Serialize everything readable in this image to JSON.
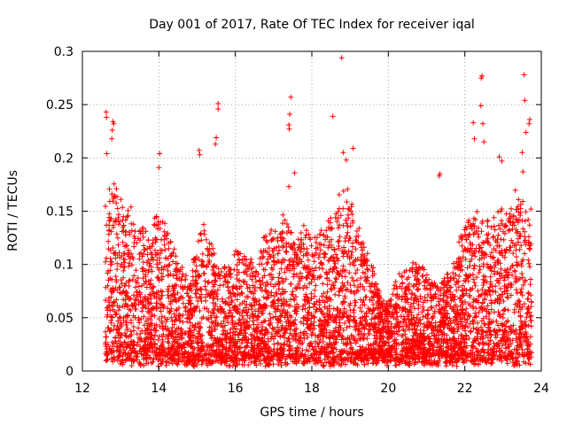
{
  "chart_data": {
    "type": "scatter",
    "title": "Day 001 of 2017, Rate Of TEC Index for receiver iqal",
    "xlabel": "GPS time / hours",
    "ylabel": "ROTI / TECUs",
    "xlim": [
      12,
      24
    ],
    "ylim": [
      0,
      0.3
    ],
    "x_ticks": [
      12,
      14,
      16,
      18,
      20,
      22,
      24
    ],
    "x_tick_labels": [
      "12",
      "14",
      "16",
      "18",
      "20",
      "22",
      "24"
    ],
    "y_ticks": [
      0,
      0.05,
      0.1,
      0.15,
      0.2,
      0.25,
      0.3
    ],
    "y_tick_labels": [
      "0",
      "0.05",
      "0.1",
      "0.15",
      "0.2",
      "0.25",
      "0.3"
    ],
    "grid": true,
    "marker": "+",
    "color": "#ff0000",
    "series_name": "ROTI",
    "x_start": 12.6,
    "x_end": 23.75,
    "envelope_hours": [
      12.6,
      12.8,
      13.0,
      13.2,
      13.5,
      13.8,
      14.0,
      14.2,
      14.5,
      14.8,
      15.0,
      15.2,
      15.5,
      15.8,
      16.0,
      16.3,
      16.6,
      16.8,
      17.0,
      17.3,
      17.6,
      17.8,
      18.0,
      18.3,
      18.6,
      18.8,
      19.0,
      19.3,
      19.6,
      19.8,
      20.0,
      20.3,
      20.6,
      20.8,
      21.0,
      21.3,
      21.6,
      21.8,
      22.0,
      22.3,
      22.6,
      22.8,
      23.0,
      23.3,
      23.6,
      23.75
    ],
    "envelope_roti": [
      0.14,
      0.16,
      0.15,
      0.14,
      0.12,
      0.11,
      0.15,
      0.12,
      0.09,
      0.08,
      0.11,
      0.13,
      0.09,
      0.09,
      0.1,
      0.1,
      0.09,
      0.12,
      0.12,
      0.13,
      0.11,
      0.12,
      0.12,
      0.12,
      0.13,
      0.17,
      0.15,
      0.11,
      0.09,
      0.06,
      0.06,
      0.08,
      0.09,
      0.09,
      0.08,
      0.07,
      0.08,
      0.1,
      0.13,
      0.14,
      0.13,
      0.13,
      0.14,
      0.15,
      0.14,
      0.12
    ],
    "notable_points": [
      {
        "x": 12.62,
        "y": 0.243
      },
      {
        "x": 12.63,
        "y": 0.238
      },
      {
        "x": 12.64,
        "y": 0.204
      },
      {
        "x": 12.8,
        "y": 0.234
      },
      {
        "x": 12.82,
        "y": 0.232
      },
      {
        "x": 12.78,
        "y": 0.226
      },
      {
        "x": 12.77,
        "y": 0.218
      },
      {
        "x": 14.02,
        "y": 0.204
      },
      {
        "x": 14.0,
        "y": 0.191
      },
      {
        "x": 15.05,
        "y": 0.207
      },
      {
        "x": 15.07,
        "y": 0.203
      },
      {
        "x": 15.55,
        "y": 0.251
      },
      {
        "x": 15.55,
        "y": 0.246
      },
      {
        "x": 15.5,
        "y": 0.219
      },
      {
        "x": 15.48,
        "y": 0.213
      },
      {
        "x": 17.45,
        "y": 0.257
      },
      {
        "x": 17.42,
        "y": 0.241
      },
      {
        "x": 17.4,
        "y": 0.231
      },
      {
        "x": 17.41,
        "y": 0.227
      },
      {
        "x": 17.55,
        "y": 0.186
      },
      {
        "x": 17.4,
        "y": 0.173
      },
      {
        "x": 18.55,
        "y": 0.239
      },
      {
        "x": 18.78,
        "y": 0.294
      },
      {
        "x": 18.82,
        "y": 0.205
      },
      {
        "x": 18.9,
        "y": 0.198
      },
      {
        "x": 19.08,
        "y": 0.209
      },
      {
        "x": 21.35,
        "y": 0.185
      },
      {
        "x": 21.33,
        "y": 0.183
      },
      {
        "x": 22.22,
        "y": 0.233
      },
      {
        "x": 22.25,
        "y": 0.218
      },
      {
        "x": 22.45,
        "y": 0.277
      },
      {
        "x": 22.43,
        "y": 0.275
      },
      {
        "x": 22.42,
        "y": 0.249
      },
      {
        "x": 22.47,
        "y": 0.232
      },
      {
        "x": 22.5,
        "y": 0.215
      },
      {
        "x": 22.9,
        "y": 0.201
      },
      {
        "x": 22.97,
        "y": 0.197
      },
      {
        "x": 23.55,
        "y": 0.278
      },
      {
        "x": 23.57,
        "y": 0.254
      },
      {
        "x": 23.7,
        "y": 0.236
      },
      {
        "x": 23.68,
        "y": 0.232
      },
      {
        "x": 23.6,
        "y": 0.224
      },
      {
        "x": 23.5,
        "y": 0.205
      },
      {
        "x": 23.52,
        "y": 0.187
      },
      {
        "x": 23.73,
        "y": 0.152
      }
    ]
  }
}
